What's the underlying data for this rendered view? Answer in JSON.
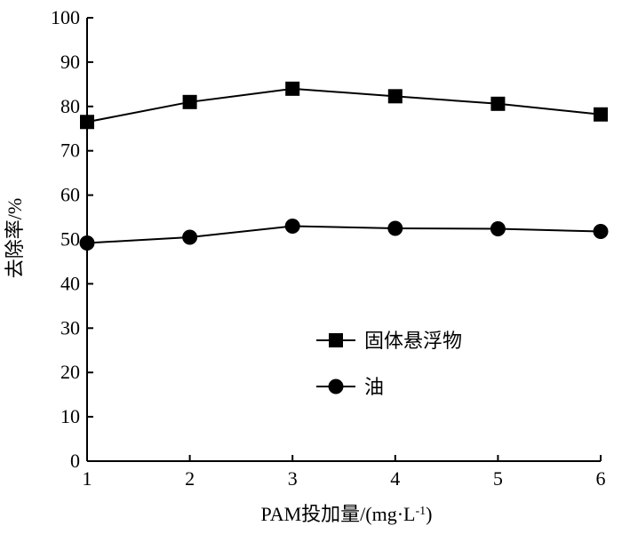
{
  "chart_data": {
    "type": "line",
    "title": "",
    "xlabel_main": "PAM投加量/(mg·L",
    "xlabel_sup": "-1",
    "xlabel_close": ")",
    "ylabel": "去除率/%",
    "x": [
      1,
      2,
      3,
      4,
      5,
      6
    ],
    "xlim": [
      1,
      6
    ],
    "ylim": [
      0,
      100
    ],
    "xticks": [
      "1",
      "2",
      "3",
      "4",
      "5",
      "6"
    ],
    "yticks": [
      "0",
      "10",
      "20",
      "30",
      "40",
      "50",
      "60",
      "70",
      "80",
      "90",
      "100"
    ],
    "grid": false,
    "legend_position": "center-right",
    "series": [
      {
        "name": "固体悬浮物",
        "marker": "square",
        "values": [
          76.5,
          81,
          84,
          82.3,
          80.6,
          78.2
        ]
      },
      {
        "name": "油",
        "marker": "circle",
        "values": [
          49.2,
          50.5,
          53,
          52.5,
          52.4,
          51.8
        ]
      }
    ]
  }
}
